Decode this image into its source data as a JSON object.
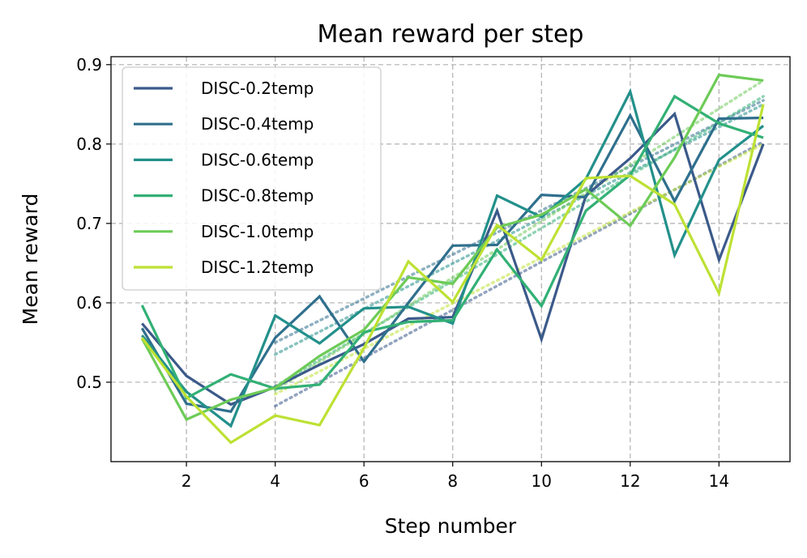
{
  "chart_data": {
    "type": "line",
    "title": "Mean reward per step",
    "xlabel": "Step number",
    "ylabel": "Mean reward",
    "xlim": [
      0.3,
      15.6
    ],
    "ylim": [
      0.4,
      0.91
    ],
    "xticks": [
      2,
      4,
      6,
      8,
      10,
      12,
      14
    ],
    "yticks": [
      0.5,
      0.6,
      0.7,
      0.8,
      0.9
    ],
    "grid": true,
    "legend_position": "upper-left",
    "x": [
      1,
      2,
      3,
      4,
      5,
      6,
      7,
      8,
      9,
      10,
      11,
      12,
      13,
      14,
      15
    ],
    "series": [
      {
        "name": "DISC-0.2temp",
        "color": "#3b5a8a",
        "values": [
          0.574,
          0.508,
          0.472,
          0.494,
          0.522,
          0.548,
          0.58,
          0.582,
          0.716,
          0.554,
          0.735,
          0.782,
          0.838,
          0.654,
          0.8
        ],
        "trend": [
          0.47,
          0.803
        ]
      },
      {
        "name": "DISC-0.4temp",
        "color": "#2f6f8d",
        "values": [
          0.568,
          0.473,
          0.463,
          0.556,
          0.608,
          0.526,
          0.6,
          0.672,
          0.673,
          0.736,
          0.733,
          0.836,
          0.728,
          0.832,
          0.833
        ],
        "trend": [
          0.55,
          0.855
        ]
      },
      {
        "name": "DISC-0.6temp",
        "color": "#23908b",
        "values": [
          0.559,
          0.488,
          0.445,
          0.584,
          0.549,
          0.593,
          0.595,
          0.574,
          0.735,
          0.708,
          0.756,
          0.866,
          0.66,
          0.78,
          0.823
        ],
        "trend": [
          0.535,
          0.85
        ]
      },
      {
        "name": "DISC-0.8temp",
        "color": "#32b075",
        "values": [
          0.597,
          0.48,
          0.51,
          0.492,
          0.497,
          0.563,
          0.576,
          0.578,
          0.667,
          0.596,
          0.716,
          0.761,
          0.86,
          0.826,
          0.808
        ],
        "trend": [
          0.495,
          0.86
        ]
      },
      {
        "name": "DISC-1.0temp",
        "color": "#6dcb57",
        "values": [
          0.555,
          0.453,
          0.478,
          0.493,
          0.533,
          0.566,
          0.632,
          0.624,
          0.695,
          0.711,
          0.743,
          0.697,
          0.783,
          0.887,
          0.88
        ],
        "trend": [
          0.49,
          0.88
        ]
      },
      {
        "name": "DISC-1.2temp",
        "color": "#bde133",
        "values": [
          0.556,
          0.482,
          0.424,
          0.458,
          0.446,
          0.543,
          0.652,
          0.601,
          0.698,
          0.654,
          0.757,
          0.76,
          0.724,
          0.612,
          0.85
        ],
        "trend": [
          0.485,
          0.8
        ]
      }
    ]
  }
}
